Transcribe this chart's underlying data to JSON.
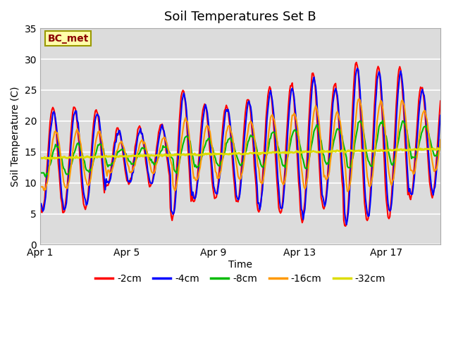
{
  "title": "Soil Temperatures Set B",
  "xlabel": "Time",
  "ylabel": "Soil Temperature (C)",
  "annotation": "BC_met",
  "ylim": [
    0,
    35
  ],
  "xlim_days": 18.5,
  "series_labels": [
    "-2cm",
    "-4cm",
    "-8cm",
    "-16cm",
    "-32cm"
  ],
  "series_colors": [
    "#ff0000",
    "#0000ff",
    "#00bb00",
    "#ff9900",
    "#dddd00"
  ],
  "series_linewidths": [
    1.5,
    1.5,
    1.5,
    1.5,
    2.0
  ],
  "plot_bg": "#dcdcdc",
  "xtick_labels": [
    "Apr 1",
    "Apr 5",
    "Apr 9",
    "Apr 13",
    "Apr 17"
  ],
  "xtick_positions": [
    0,
    4,
    8,
    12,
    16
  ],
  "ytick_positions": [
    0,
    5,
    10,
    15,
    20,
    25,
    30,
    35
  ],
  "grid_color": "#ffffff",
  "title_fontsize": 13,
  "axis_label_fontsize": 10,
  "tick_fontsize": 10,
  "legend_fontsize": 10
}
